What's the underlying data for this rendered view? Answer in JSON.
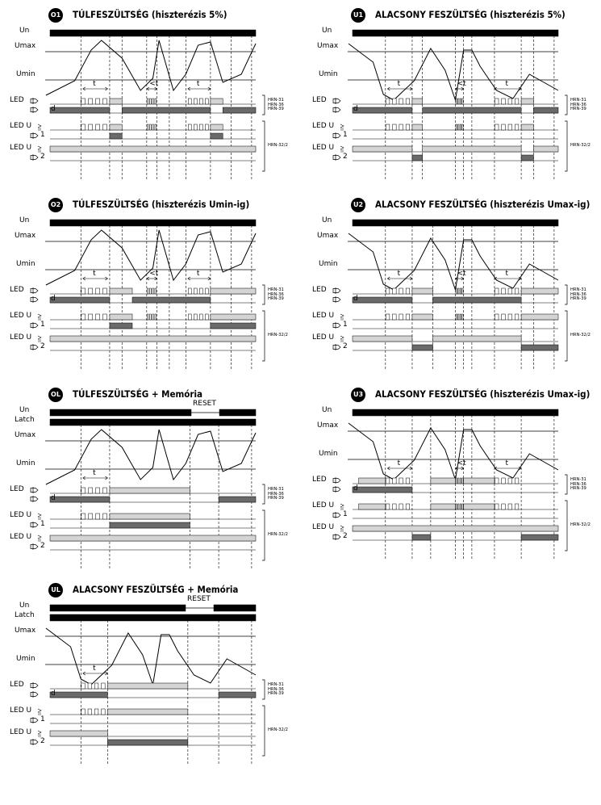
{
  "panels": [
    {
      "id": "O1",
      "title": "TÚLFESZÜLTSÉG (hiszterézis 5%)"
    },
    {
      "id": "U1",
      "title": "ALACSONY FESZÜLTSÉG (hiszterézis 5%)"
    },
    {
      "id": "O2",
      "title": "TÚLFESZÜLTSÉG (hiszterézis Umin-ig)"
    },
    {
      "id": "U2",
      "title": "ALACSONY FESZÜLTSÉG (hiszterézis Umax-ig)"
    },
    {
      "id": "OL",
      "title": "TÚLFESZÜLTSÉG + Memória"
    },
    {
      "id": "U3",
      "title": "ALACSONY FESZÜLTSÉG (hiszterézis Umax-ig)"
    },
    {
      "id": "UL",
      "title": "ALACSONY FESZÜLTSÉG + Memória"
    }
  ],
  "labels": {
    "un": "Un",
    "latch": "Latch",
    "umax": "Umax",
    "umin": "Umin",
    "led_relay": "LED",
    "led_u": "LED U",
    "relay1": "1",
    "relay2": "2",
    "d": "d",
    "t": "t",
    "lt": "<t",
    "reset": "RESET"
  },
  "models": {
    "group1": "HRN-31\nHRN-36\nHRN-39",
    "group2": "HRN-32/2"
  },
  "colors": {
    "black": "#000000",
    "gray_light": "#d4d4d4",
    "gray_dark": "#6a6a6a"
  }
}
